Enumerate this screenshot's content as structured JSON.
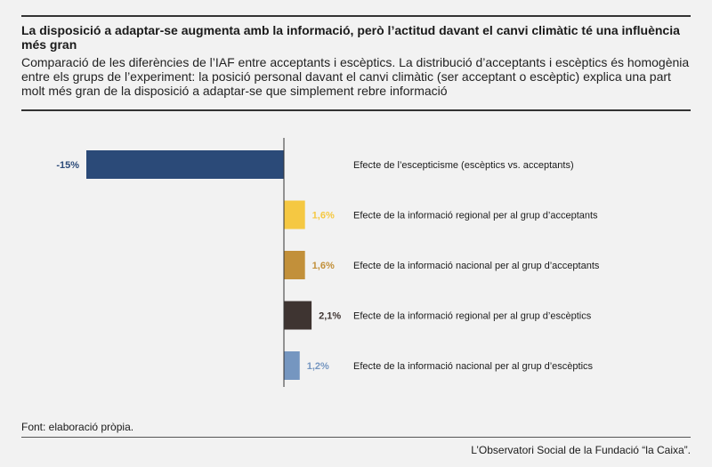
{
  "header": {
    "title": "La disposició a adaptar-se augmenta amb la informació, però l’actitud davant el canvi climàtic té una influència més gran",
    "subtitle": "Comparació de les diferències de l’IAF entre acceptants i escèptics. La distribució d’acceptants i escèptics és homogènia entre els grups de l’experiment: la posició personal davant el canvi climàtic (ser acceptant o escèptic) explica una part molt més gran de la disposició a adaptar-se que simplement rebre informació"
  },
  "chart_data": {
    "type": "bar",
    "orientation": "horizontal",
    "categories": [
      "Efecte de l’escepticisme (escèptics vs. acceptants)",
      "Efecte de la informació regional per al grup d’acceptants",
      "Efecte de la informació nacional per al grup d’acceptants",
      "Efecte de la informació regional per al grup d’escèptics",
      "Efecte de la informació nacional per al grup d’escèptics"
    ],
    "values": [
      -15,
      1.6,
      1.6,
      2.1,
      1.2
    ],
    "value_labels": [
      "-15%",
      "1,6%",
      "1,6%",
      "2,1%",
      "1,2%"
    ],
    "colors": [
      "#2b4a78",
      "#f5c842",
      "#c2903a",
      "#3e3431",
      "#7596c0"
    ],
    "label_colors": [
      "#2b4a78",
      "#f5c842",
      "#c2903a",
      "#3e3431",
      "#7596c0"
    ],
    "xlim": [
      -15,
      2.1
    ],
    "grid": false
  },
  "footer": {
    "source": "Font: elaboració pròpia.",
    "credit": "L’Observatori Social de la Fundació “la Caixa”."
  }
}
